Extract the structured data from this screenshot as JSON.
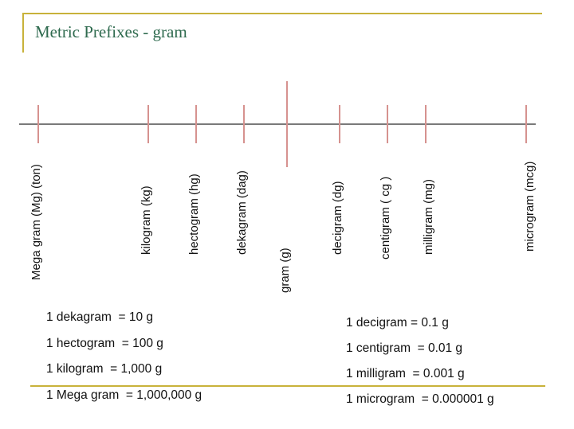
{
  "title": "Metric Prefixes - gram",
  "colors": {
    "frame": "#c8b23a",
    "title": "#2e6a4e",
    "axis": "#7a7a7a",
    "tick": "#d6928f"
  },
  "units": [
    {
      "label": "Mega gram (Mg) (ton)"
    },
    {
      "label": "kilogram (kg)"
    },
    {
      "label": "hectogram (hg)"
    },
    {
      "label": "dekagram (dag)"
    },
    {
      "label": "gram (g)"
    },
    {
      "label": "decigram (dg)"
    },
    {
      "label": "centigram ( cg )"
    },
    {
      "label": "milligram (mg)"
    },
    {
      "label": "microgram (mcg)"
    }
  ],
  "left_equations": [
    "1 dekagram  = 10 g",
    "1 hectogram  = 100 g",
    "1 kilogram  = 1,000 g",
    "1 Mega gram  = 1,000,000 g"
  ],
  "right_equations": [
    "1 decigram = 0.1 g",
    "1 centigram  = 0.01 g",
    "1 milligram  = 0.001 g",
    "1 microgram  = 0.000001 g"
  ]
}
